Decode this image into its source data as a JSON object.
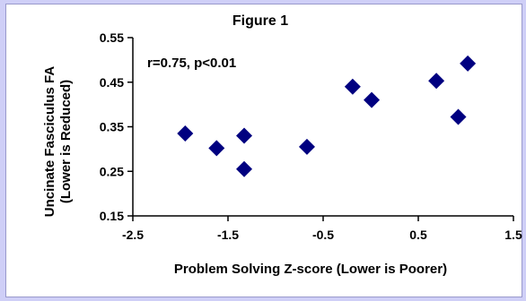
{
  "chart_data": {
    "type": "scatter",
    "title": "Figure 1",
    "xlabel": "Problem Solving Z-score (Lower is Poorer)",
    "ylabel_line1": "Uncinate Fasciculus FA",
    "ylabel_line2": "(Lower is Reduced)",
    "annotation": "r=0.75, p<0.01",
    "xlim": [
      -2.5,
      1.5
    ],
    "ylim": [
      0.15,
      0.55
    ],
    "xticks": [
      -2.5,
      -1.5,
      -0.5,
      0.5,
      1.5
    ],
    "xtick_labels": [
      "-2.5",
      "-1.5",
      "-0.5",
      "0.5",
      "1.5"
    ],
    "yticks": [
      0.15,
      0.25,
      0.35,
      0.45,
      0.55
    ],
    "ytick_labels": [
      "0.15",
      "0.25",
      "0.35",
      "0.45",
      "0.55"
    ],
    "grid": false,
    "marker": "diamond",
    "marker_color": "#000080",
    "points": [
      {
        "x": -1.95,
        "y": 0.335
      },
      {
        "x": -1.62,
        "y": 0.302
      },
      {
        "x": -1.33,
        "y": 0.33
      },
      {
        "x": -1.33,
        "y": 0.255
      },
      {
        "x": -0.67,
        "y": 0.305
      },
      {
        "x": -0.19,
        "y": 0.44
      },
      {
        "x": 0.01,
        "y": 0.41
      },
      {
        "x": 0.69,
        "y": 0.453
      },
      {
        "x": 0.92,
        "y": 0.372
      },
      {
        "x": 1.02,
        "y": 0.492
      }
    ]
  },
  "colors": {
    "background": "#cfcff7",
    "panel": "#ffffff",
    "marker": "#000080",
    "axis": "#000000"
  }
}
